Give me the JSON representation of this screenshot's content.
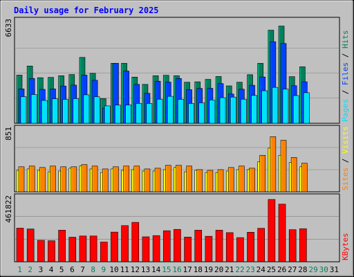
{
  "title": "Daily usage for February 2025",
  "colors": {
    "frame": "#c0c0c0",
    "plot": "#c0c0c0",
    "title": "#0000ff",
    "hits": "#00805c",
    "files": "#0040ff",
    "pages": "#00e0ff",
    "visits": "#ffff00",
    "sites": "#ff8000",
    "kbytes": "#ff0000",
    "weekend": "#00805c",
    "grid": "#808080"
  },
  "chart_data": [
    {
      "type": "bar",
      "name": "hits-files-pages",
      "ymax_label": "6633",
      "ylim": [
        0,
        6633
      ],
      "right_label_parts": [
        {
          "text": "Pages",
          "color": "#00e0ff"
        },
        {
          "text": " / ",
          "color": "#000000"
        },
        {
          "text": "Files",
          "color": "#0040ff"
        },
        {
          "text": " / ",
          "color": "#000000"
        },
        {
          "text": "Hits",
          "color": "#00805c"
        }
      ],
      "categories": [
        "1",
        "2",
        "3",
        "4",
        "5",
        "6",
        "7",
        "8",
        "9",
        "10",
        "11",
        "12",
        "13",
        "14",
        "15",
        "16",
        "17",
        "18",
        "19",
        "20",
        "21",
        "22",
        "23",
        "24",
        "25",
        "26",
        "27",
        "28",
        "29",
        "30",
        "31"
      ],
      "series": [
        {
          "key": "hits",
          "values": [
            3180,
            3780,
            3010,
            3030,
            3140,
            3220,
            4350,
            3300,
            1630,
            3960,
            3960,
            3050,
            2570,
            3140,
            3170,
            3140,
            2710,
            2740,
            2900,
            3090,
            2470,
            2710,
            3210,
            3960,
            6150,
            6420,
            3080,
            3730,
            0,
            0,
            0
          ]
        },
        {
          "key": "files",
          "values": [
            2270,
            2960,
            2240,
            2270,
            2460,
            2520,
            3180,
            2840,
            1000,
            3960,
            3450,
            2570,
            1980,
            2780,
            2720,
            2960,
            2220,
            2300,
            2310,
            2620,
            1930,
            2250,
            2510,
            3060,
            5390,
            5270,
            2480,
            2740,
            0,
            0,
            0
          ]
        },
        {
          "key": "pages",
          "values": [
            1760,
            1900,
            1510,
            1620,
            1580,
            1630,
            1880,
            1750,
            1150,
            1200,
            1210,
            1310,
            1310,
            1590,
            1780,
            1580,
            1310,
            1350,
            1540,
            1690,
            1730,
            1590,
            1840,
            2150,
            2370,
            2260,
            1830,
            2020,
            0,
            0,
            0
          ]
        }
      ]
    },
    {
      "type": "bar",
      "name": "visits-sites",
      "ymax_label": "851",
      "ylim": [
        0,
        851
      ],
      "right_label_parts": [
        {
          "text": "Sites",
          "color": "#ff8000"
        },
        {
          "text": " / ",
          "color": "#000000"
        },
        {
          "text": "Visits",
          "color": "#ffff00"
        }
      ],
      "categories": [
        "1",
        "2",
        "3",
        "4",
        "5",
        "6",
        "7",
        "8",
        "9",
        "10",
        "11",
        "12",
        "13",
        "14",
        "15",
        "16",
        "17",
        "18",
        "19",
        "20",
        "21",
        "22",
        "23",
        "24",
        "25",
        "26",
        "27",
        "28",
        "29",
        "30",
        "31"
      ],
      "series": [
        {
          "key": "visits",
          "values": [
            300,
            320,
            300,
            280,
            290,
            330,
            360,
            320,
            270,
            320,
            300,
            310,
            290,
            290,
            310,
            340,
            280,
            300,
            270,
            270,
            290,
            310,
            310,
            420,
            610,
            510,
            410,
            350,
            0,
            0,
            0
          ]
        },
        {
          "key": "sites",
          "values": [
            350,
            360,
            340,
            360,
            350,
            350,
            380,
            360,
            320,
            350,
            360,
            360,
            320,
            330,
            370,
            370,
            360,
            310,
            300,
            310,
            340,
            360,
            330,
            510,
            770,
            720,
            480,
            400,
            0,
            0,
            0
          ]
        }
      ]
    },
    {
      "type": "bar",
      "name": "kbytes",
      "ymax_label": "461822",
      "ylim": [
        0,
        461822
      ],
      "right_label_parts": [
        {
          "text": "KBytes",
          "color": "#ff0000"
        }
      ],
      "categories": [
        "1",
        "2",
        "3",
        "4",
        "5",
        "6",
        "7",
        "8",
        "9",
        "10",
        "11",
        "12",
        "13",
        "14",
        "15",
        "16",
        "17",
        "18",
        "19",
        "20",
        "21",
        "22",
        "23",
        "24",
        "25",
        "26",
        "27",
        "28",
        "29",
        "30",
        "31"
      ],
      "series": [
        {
          "key": "kbytes",
          "values": [
            249000,
            243000,
            159000,
            156000,
            234000,
            182000,
            191000,
            191000,
            146000,
            220000,
            268000,
            292000,
            185000,
            194000,
            230000,
            240000,
            183000,
            234000,
            189000,
            234000,
            216000,
            179000,
            219000,
            248000,
            461822,
            427000,
            238000,
            245000,
            0,
            0,
            0
          ]
        }
      ]
    }
  ],
  "x_labels": {
    "days": [
      "1",
      "2",
      "3",
      "4",
      "5",
      "6",
      "7",
      "8",
      "9",
      "10",
      "11",
      "12",
      "13",
      "14",
      "15",
      "16",
      "17",
      "18",
      "19",
      "20",
      "21",
      "22",
      "23",
      "24",
      "25",
      "26",
      "27",
      "28",
      "29",
      "30",
      "31"
    ],
    "weekend_days": [
      1,
      2,
      8,
      9,
      15,
      16,
      22,
      23,
      29,
      30
    ]
  }
}
